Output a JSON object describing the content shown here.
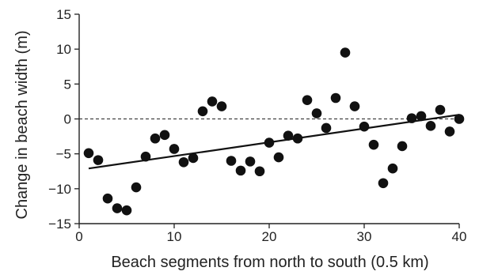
{
  "chart_data": {
    "type": "scatter",
    "title": "",
    "xlabel": "Beach segments from north to south (0.5 km)",
    "ylabel": "Change in beach width (m)",
    "xlim": [
      0,
      40
    ],
    "ylim": [
      -15,
      15
    ],
    "xticks": [
      "0",
      "10",
      "20",
      "30",
      "40"
    ],
    "yticks": [
      "15",
      "10",
      "5",
      "0",
      "−5",
      "−10",
      "−15"
    ],
    "grid": false,
    "zero_line": "dashed",
    "series": [
      {
        "x": [
          1,
          2,
          3,
          4,
          5,
          6,
          7,
          8,
          9,
          10,
          11,
          12,
          13,
          14,
          15,
          16,
          17,
          18,
          19,
          20,
          21,
          22,
          23,
          24,
          25,
          26,
          27,
          28,
          29,
          30,
          31,
          32,
          33,
          34,
          35,
          36,
          37,
          38,
          39,
          40
        ],
        "y": [
          -4.9,
          -5.9,
          -11.4,
          -12.8,
          -13.1,
          -9.8,
          -5.4,
          -2.8,
          -2.3,
          -4.3,
          -6.2,
          -5.6,
          1.1,
          2.5,
          1.8,
          -6.0,
          -7.4,
          -6.1,
          -7.5,
          -3.4,
          -5.5,
          -2.4,
          -2.8,
          2.7,
          0.8,
          -1.3,
          3.0,
          9.5,
          1.8,
          -1.1,
          -3.7,
          -9.2,
          -7.1,
          -3.9,
          0.1,
          0.4,
          -1.0,
          1.3,
          -1.8,
          0.0
        ]
      }
    ],
    "trend_line": {
      "x": [
        1,
        40
      ],
      "y": [
        -7.1,
        0.6
      ]
    }
  }
}
